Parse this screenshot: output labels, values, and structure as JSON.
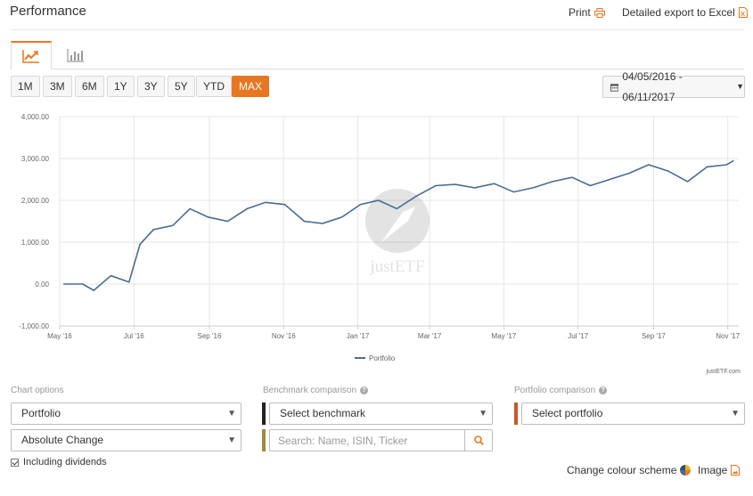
{
  "header": {
    "title": "Performance",
    "print_label": "Print",
    "export_label": "Detailed export to Excel"
  },
  "ranges": [
    "1M",
    "3M",
    "6M",
    "1Y",
    "3Y",
    "5Y",
    "YTD",
    "MAX"
  ],
  "active_range": "MAX",
  "date_range": "04/05/2016 - 06/11/2017",
  "chart_data": {
    "type": "line",
    "title": "",
    "xlabel": "",
    "ylabel": "",
    "ylim": [
      -1000,
      4000
    ],
    "yticks": [
      "4,000.00",
      "3,000.00",
      "2,000.00",
      "1,000.00",
      "0.00",
      "-1,000.00"
    ],
    "xticks": [
      "May '16",
      "Jul '16",
      "Sep '16",
      "Nov '16",
      "Jan '17",
      "Mar '17",
      "May '17",
      "Jul '17",
      "Sep '17",
      "Nov '17"
    ],
    "grid": true,
    "legend": "bottom",
    "watermark": "justETF",
    "series": [
      {
        "name": "Portfolio",
        "color": "#4a6a96",
        "x": [
          "2016-05-04",
          "2016-05-20",
          "2016-05-29",
          "2016-06-12",
          "2016-06-27",
          "2016-07-06",
          "2016-07-17",
          "2016-08-02",
          "2016-08-16",
          "2016-08-31",
          "2016-09-16",
          "2016-10-02",
          "2016-10-17",
          "2016-11-02",
          "2016-11-18",
          "2016-12-03",
          "2016-12-19",
          "2017-01-03",
          "2017-01-18",
          "2017-02-02",
          "2017-02-18",
          "2017-03-06",
          "2017-03-22",
          "2017-04-07",
          "2017-04-23",
          "2017-05-09",
          "2017-05-25",
          "2017-06-10",
          "2017-06-26",
          "2017-07-11",
          "2017-07-27",
          "2017-08-12",
          "2017-08-28",
          "2017-09-13",
          "2017-09-29",
          "2017-10-15",
          "2017-10-31",
          "2017-11-06"
        ],
        "y": [
          0,
          0,
          -150,
          200,
          50,
          950,
          1300,
          1400,
          1800,
          1600,
          1500,
          1800,
          1950,
          1900,
          1500,
          1450,
          1600,
          1900,
          2000,
          1800,
          2100,
          2350,
          2380,
          2300,
          2400,
          2200,
          2300,
          2450,
          2550,
          2350,
          2500,
          2650,
          2850,
          2700,
          2450,
          2800,
          2850,
          2950
        ]
      }
    ]
  },
  "chart_credit": "justETF.com",
  "chart_options": {
    "label": "Chart options",
    "portfolio_select": "Portfolio",
    "change_select": "Absolute Change",
    "dividends_label": "Including dividends"
  },
  "benchmark": {
    "label": "Benchmark comparison",
    "select": "Select benchmark",
    "search_placeholder": "Search: Name, ISIN, Ticker",
    "bar_colors": [
      "#222222",
      "#a08a36"
    ]
  },
  "portfolio_comparison": {
    "label": "Portfolio comparison",
    "select": "Select portfolio",
    "bar_color": "#c55a28"
  },
  "footer": {
    "colour_label": "Change colour scheme",
    "image_label": "Image"
  },
  "accent": "#e87722"
}
